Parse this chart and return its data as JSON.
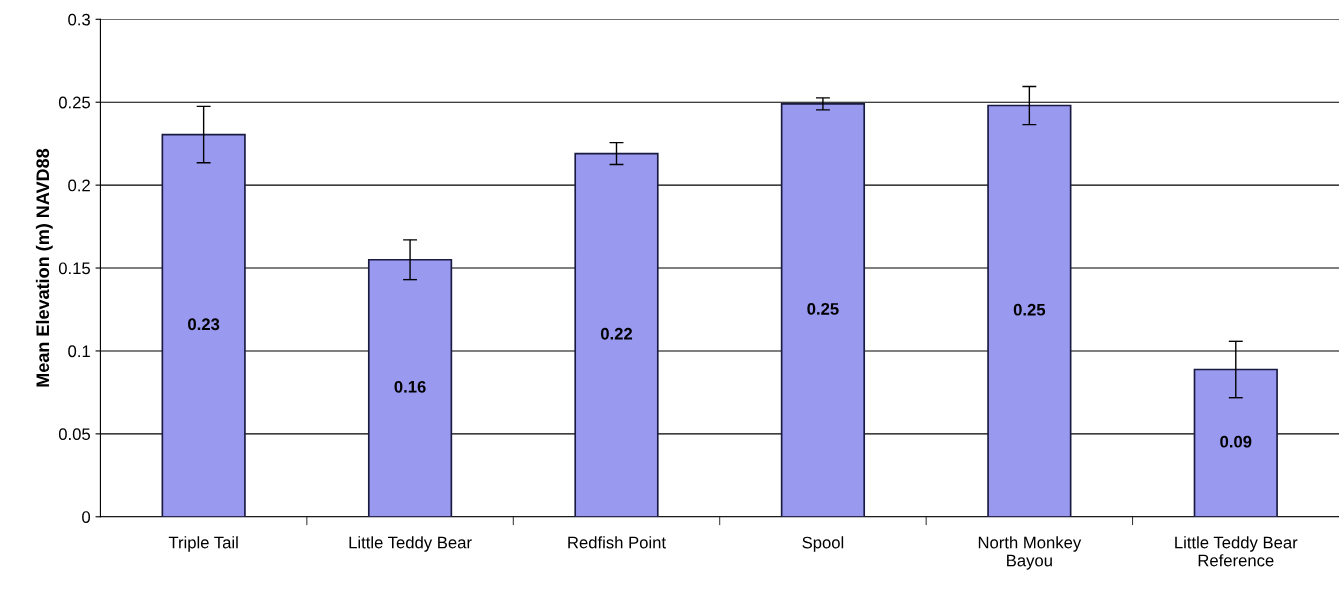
{
  "chart_data": {
    "type": "bar",
    "ylabel": "Mean Elevation (m) NAVD88",
    "categories": [
      "Triple Tail",
      "Little Teddy Bear",
      "Redfish Point",
      "Spool",
      "North Monkey\nBayou",
      "Little Teddy Bear\nReference"
    ],
    "values": [
      0.2305,
      0.155,
      0.219,
      0.249,
      0.248,
      0.0888
    ],
    "errors": [
      0.017,
      0.012,
      0.0066,
      0.0036,
      0.0115,
      0.017
    ],
    "value_labels": [
      "0.23",
      "0.16",
      "0.22",
      "0.25",
      "0.25",
      "0.09"
    ],
    "color": "#9999f0",
    "ylim": [
      0,
      0.3
    ],
    "yticks": [
      {
        "value": 0,
        "label": "0"
      },
      0.05,
      0.1,
      0.15,
      0.2,
      0.25,
      0.3
    ],
    "grid": "y",
    "legend": false
  }
}
